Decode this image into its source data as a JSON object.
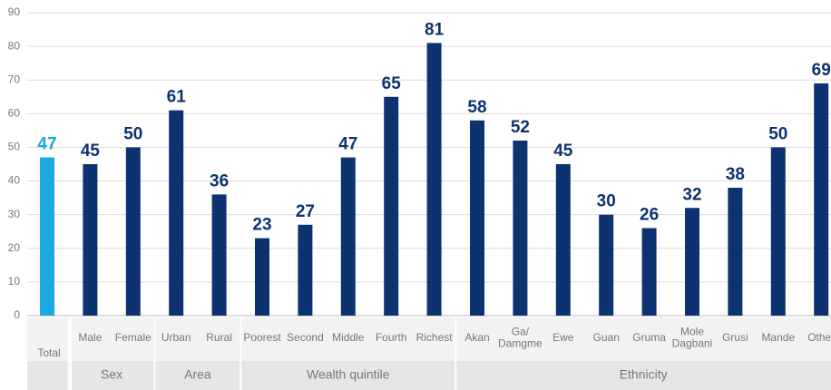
{
  "chart_data": {
    "type": "bar",
    "ylim": [
      0,
      90
    ],
    "yticks": [
      0,
      10,
      20,
      30,
      40,
      50,
      60,
      70,
      80,
      90
    ],
    "grid": true,
    "color": "#0c3370",
    "total": {
      "category": "Total",
      "value": 47,
      "color": "#1aa9e0"
    },
    "groups": [
      {
        "label": "Sex",
        "categories": [
          "Male",
          "Female"
        ],
        "values": [
          45,
          50
        ]
      },
      {
        "label": "Area",
        "categories": [
          "Urban",
          "Rural"
        ],
        "values": [
          61,
          36
        ]
      },
      {
        "label": "Wealth quintile",
        "categories": [
          "Poorest",
          "Second",
          "Middle",
          "Fourth",
          "Richest"
        ],
        "values": [
          23,
          27,
          47,
          65,
          81
        ]
      },
      {
        "label": "Ethnicity",
        "categories": [
          "Akan",
          "Ga/\nDamgme",
          "Ewe",
          "Guan",
          "Gruma",
          "Mole\nDagbani",
          "Grusi",
          "Mande",
          "Other"
        ],
        "values": [
          58,
          52,
          45,
          30,
          26,
          32,
          38,
          50,
          69
        ]
      }
    ]
  }
}
